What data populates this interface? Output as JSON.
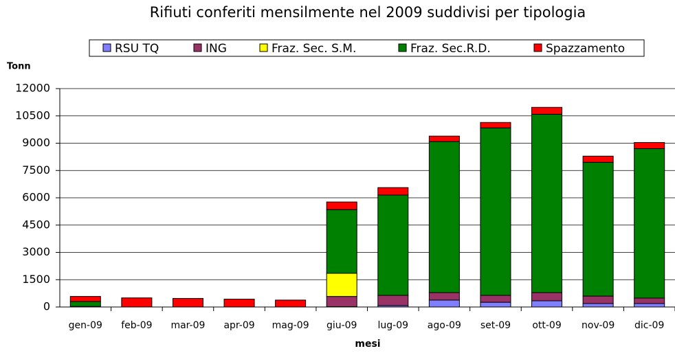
{
  "chart_data": {
    "type": "stacked_bar",
    "title": "Rifiuti conferiti mensilmente nel 2009 suddivisi per tipologia",
    "y_label": "Tonn",
    "x_label": "mesi",
    "categories": [
      "gen-09",
      "feb-09",
      "mar-09",
      "apr-09",
      "mag-09",
      "giu-09",
      "lug-09",
      "ago-09",
      "set-09",
      "ott-09",
      "nov-09",
      "dic-09"
    ],
    "series": [
      {
        "name": "RSU TQ",
        "color": "#8080ff",
        "values": [
          0,
          0,
          0,
          0,
          0,
          20,
          80,
          380,
          260,
          340,
          190,
          190
        ]
      },
      {
        "name": "ING",
        "color": "#993366",
        "values": [
          30,
          0,
          0,
          0,
          0,
          560,
          560,
          410,
          380,
          450,
          410,
          300
        ]
      },
      {
        "name": "Fraz. Sec. S.M.",
        "color": "#ffff00",
        "values": [
          0,
          0,
          0,
          0,
          0,
          1270,
          0,
          0,
          0,
          0,
          0,
          0
        ]
      },
      {
        "name": "Fraz. Sec.R.D.",
        "color": "#008000",
        "values": [
          270,
          0,
          0,
          0,
          0,
          3500,
          5510,
          8300,
          9200,
          9800,
          7350,
          8210
        ]
      },
      {
        "name": "Spazzamento",
        "color": "#ff0000",
        "values": [
          280,
          500,
          470,
          430,
          380,
          420,
          410,
          300,
          300,
          380,
          340,
          340
        ]
      }
    ],
    "ylim": [
      0,
      12000
    ],
    "yticks": [
      0,
      1500,
      3000,
      4500,
      6000,
      7500,
      9000,
      10500,
      12000
    ],
    "grid": true
  }
}
